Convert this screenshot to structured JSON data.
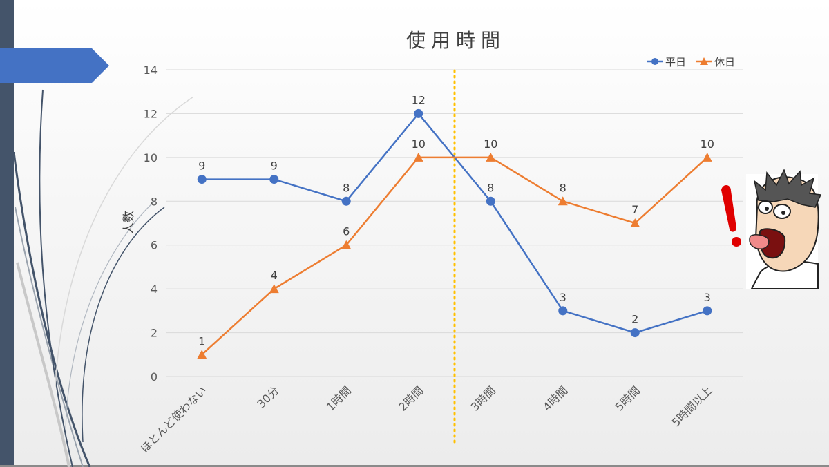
{
  "chart_data": {
    "type": "line",
    "title": "使用時間",
    "xlabel": "",
    "ylabel": "人数",
    "ylim": [
      0,
      14
    ],
    "yticks": [
      0,
      2,
      4,
      6,
      8,
      10,
      12,
      14
    ],
    "categories": [
      "ほとんど使わない",
      "30分",
      "1時間",
      "2時間",
      "3時間",
      "4時間",
      "5時間",
      "5時間以上"
    ],
    "series": [
      {
        "name": "平日",
        "values": [
          9,
          9,
          8,
          12,
          8,
          3,
          2,
          3
        ],
        "color": "#4472c4",
        "marker": "circle"
      },
      {
        "name": "休日",
        "values": [
          1,
          4,
          6,
          10,
          10,
          8,
          7,
          10
        ],
        "color": "#ed7d31",
        "marker": "triangle"
      }
    ],
    "grid": true,
    "legend": "top-right",
    "divider": {
      "between": [
        "2時間",
        "3時間"
      ],
      "style": "dotted",
      "color": "#ffc000"
    }
  },
  "decorations": {
    "left_bar_color": "#44546a",
    "arrow_tab_color": "#4472c4",
    "character_icon": "surprised-man-cartoon-icon",
    "exclamation_color": "#e00000"
  }
}
